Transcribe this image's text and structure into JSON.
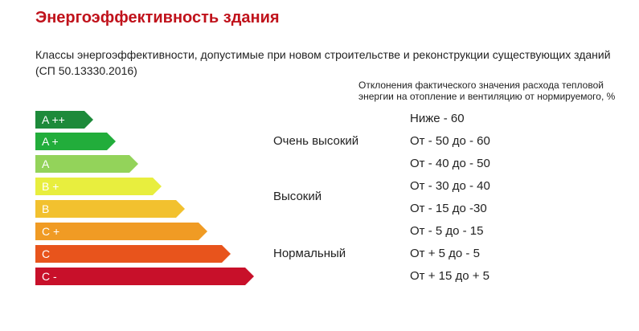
{
  "title": "Энергоэффективность здания",
  "subtitle": "Классы энергоэффективности, допустимые при новом строительстве и реконструкции существующих зданий (СП 50.13330.2016)",
  "column_header": "Отклонения фактического значения расхода тепловой энергии на отопление и вентиляцию от нормируемого, %",
  "classes": [
    {
      "label": "A ++",
      "color": "#1d8a3a"
    },
    {
      "label": "A +",
      "color": "#22ad3b"
    },
    {
      "label": "A",
      "color": "#93d35a"
    },
    {
      "label": "B +",
      "color": "#e8ee3e"
    },
    {
      "label": "B",
      "color": "#f2c12f"
    },
    {
      "label": "C +",
      "color": "#f09b24"
    },
    {
      "label": "C",
      "color": "#e8541c"
    },
    {
      "label": "C -",
      "color": "#c8102a"
    }
  ],
  "levels": [
    "Очень высокий",
    "Высокий",
    "Нормальный"
  ],
  "ranges": [
    "Ниже - 60",
    "От - 50 до - 60",
    "От - 40 до - 50",
    "От - 30 до - 40",
    "От - 15 до -30",
    "От - 5 до - 15",
    "От + 5 до - 5",
    "От + 15 до + 5"
  ]
}
